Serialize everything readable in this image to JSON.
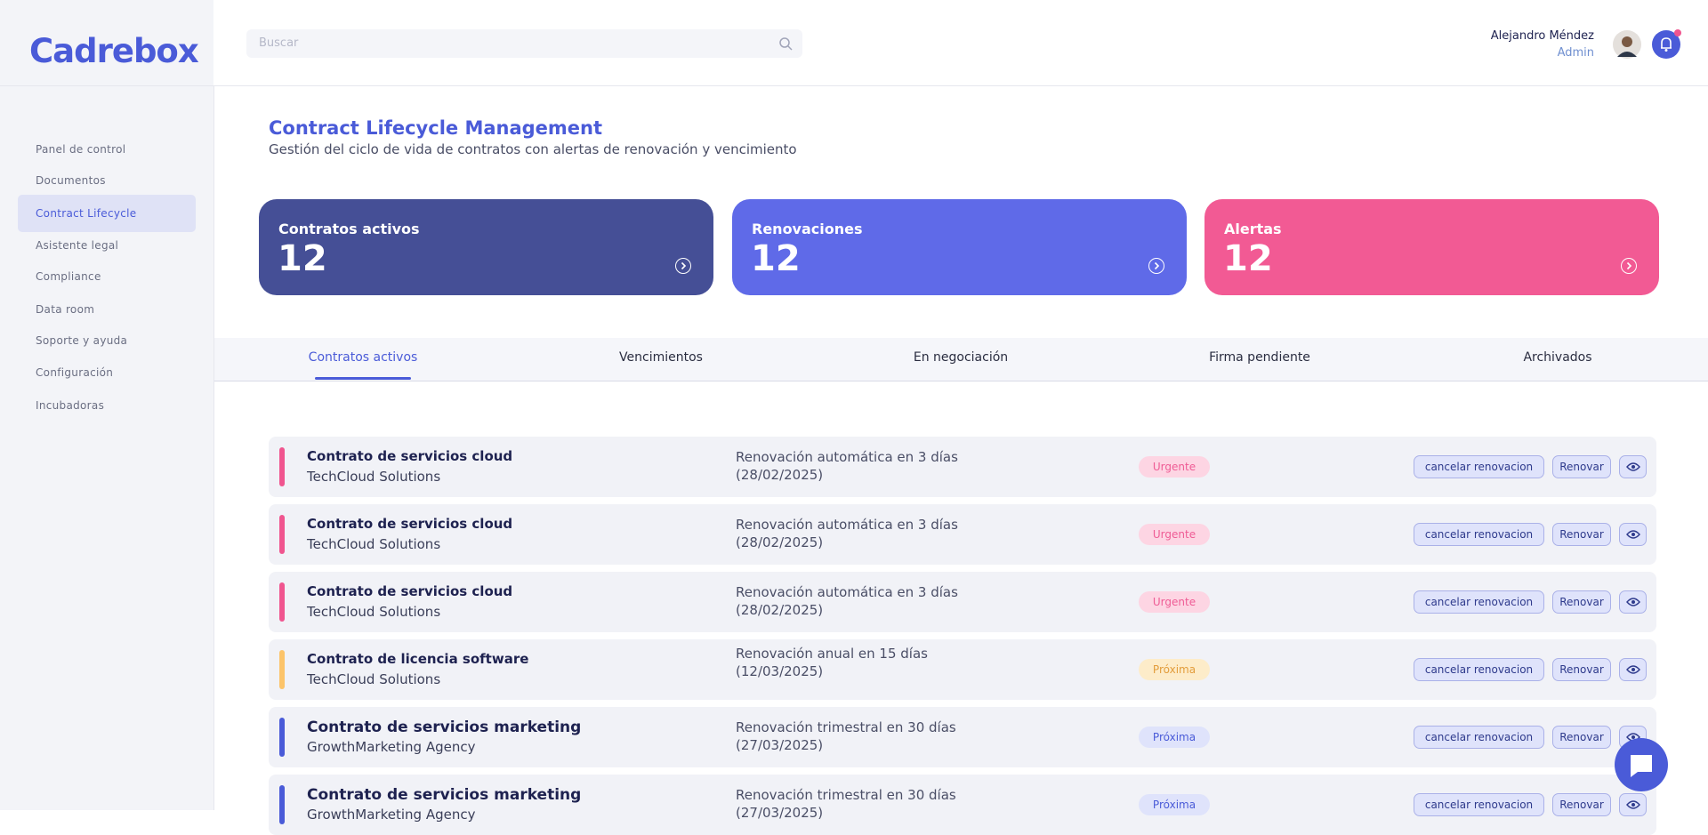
{
  "header": {
    "logo": "Cadrebox",
    "search_placeholder": "Buscar",
    "user_name": "Alejandro Méndez",
    "user_role": "Admin"
  },
  "sidebar": {
    "items": [
      "Panel de control",
      "Documentos",
      "Contract Lifecycle",
      "Asistente legal",
      "Compliance",
      "Data room",
      "Soporte y ayuda",
      "Configuración",
      "Incubadoras"
    ],
    "active": 2
  },
  "page": {
    "title": "Contract Lifecycle Management",
    "subtitle": "Gestión del ciclo de vida de contratos con alertas de renovación y vencimiento"
  },
  "cards": [
    {
      "label": "Contratos activos",
      "value": 12,
      "color": "#454f96"
    },
    {
      "label": "Renovaciones",
      "value": 12,
      "color": "#5f6ae8"
    },
    {
      "label": "Alertas",
      "value": 12,
      "color": "#f25a94"
    }
  ],
  "tabs": {
    "items": [
      "Contratos activos",
      "Vencimientos",
      "En negociación",
      "Firma pendiente",
      "Archivados"
    ],
    "active": 0
  },
  "actions": {
    "cancel": "cancelar renovacion",
    "renew": "Renovar"
  },
  "rows": [
    {
      "title": "Contrato de servicios cloud",
      "company": "TechCloud Solutions",
      "renewal": "Renovación automática en 3 días",
      "date": "(28/02/2025)",
      "badge": "Urgente",
      "accent": "#f0558f",
      "badge_bg": "#fdd5e3",
      "badge_fg": "#ef5c95"
    },
    {
      "title": "Contrato de servicios cloud",
      "company": "TechCloud Solutions",
      "renewal": "Renovación automática en 3 días",
      "date": "(28/02/2025)",
      "badge": "Urgente",
      "accent": "#f0558f",
      "badge_bg": "#fdd5e3",
      "badge_fg": "#ef5c95"
    },
    {
      "title": "Contrato de servicios cloud",
      "company": "TechCloud Solutions",
      "renewal": "Renovación automática en 3 días",
      "date": "(28/02/2025)",
      "badge": "Urgente",
      "accent": "#f0558f",
      "badge_bg": "#fdd5e3",
      "badge_fg": "#ef5c95"
    },
    {
      "title": "Contrato de licencia software",
      "company": "TechCloud Solutions",
      "renewal": "Renovación anual en 15 días",
      "date": "(12/03/2025)",
      "badge": "Próxima",
      "accent": "#fcc46a",
      "badge_bg": "#fdecc9",
      "badge_fg": "#e39d3c"
    },
    {
      "title": "Contrato de servicios marketing",
      "company": "GrowthMarketing Agency",
      "renewal": "Renovación trimestral en 30 días",
      "date": "(27/03/2025)",
      "badge": "Próxima",
      "accent": "#4a5bd8",
      "badge_bg": "#dfe3fb",
      "badge_fg": "#4a5bd8"
    },
    {
      "title": "Contrato de servicios marketing",
      "company": "GrowthMarketing Agency",
      "renewal": "Renovación trimestral en 30 días",
      "date": "(27/03/2025)",
      "badge": "Próxima",
      "accent": "#4a5bd8",
      "badge_bg": "#dfe3fb",
      "badge_fg": "#4a5bd8"
    }
  ]
}
